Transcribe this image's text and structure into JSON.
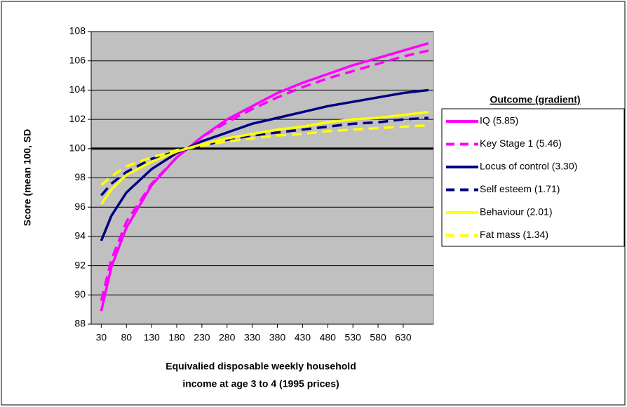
{
  "chart_data": {
    "type": "line",
    "y_label": "Score (mean 100, SD",
    "x_label": [
      "Equivalied disposable weekly household",
      "income at age 3 to 4 (1995 prices)"
    ],
    "legend_title": "Outcome (gradient)",
    "x": [
      30,
      50,
      80,
      130,
      180,
      230,
      280,
      330,
      380,
      430,
      480,
      530,
      580,
      630,
      680
    ],
    "xlim": [
      10,
      690
    ],
    "xticks": [
      30,
      80,
      130,
      180,
      230,
      280,
      330,
      380,
      430,
      480,
      530,
      580,
      630
    ],
    "ylim": [
      88,
      108
    ],
    "yticks": [
      88,
      90,
      92,
      94,
      96,
      98,
      100,
      102,
      104,
      106,
      108
    ],
    "reference_line": 100,
    "grid": true,
    "legend": "right",
    "series": [
      {
        "name": "IQ (5.85)",
        "color": "#ff00ff",
        "dashed": false,
        "values": [
          88.9,
          91.9,
          94.6,
          97.5,
          99.4,
          100.8,
          102.0,
          102.9,
          103.8,
          104.5,
          105.1,
          105.7,
          106.2,
          106.7,
          107.2
        ]
      },
      {
        "name": "Key Stage 1 (5.46)",
        "color": "#ff00ff",
        "dashed": true,
        "values": [
          89.6,
          92.4,
          95.0,
          97.6,
          99.4,
          100.8,
          101.8,
          102.7,
          103.5,
          104.2,
          104.8,
          105.3,
          105.8,
          106.3,
          106.7
        ]
      },
      {
        "name": "Locus of control (3.30)",
        "color": "#000080",
        "dashed": false,
        "values": [
          93.7,
          95.4,
          97.0,
          98.6,
          99.7,
          100.5,
          101.1,
          101.7,
          102.1,
          102.5,
          102.9,
          103.2,
          103.5,
          103.8,
          104.0
        ]
      },
      {
        "name": "Self esteem (1.71)",
        "color": "#000080",
        "dashed": true,
        "values": [
          96.8,
          97.6,
          98.4,
          99.3,
          99.8,
          100.2,
          100.6,
          100.9,
          101.1,
          101.3,
          101.5,
          101.7,
          101.8,
          102.0,
          102.1
        ]
      },
      {
        "name": "Behaviour (2.01)",
        "color": "#ffff00",
        "dashed": false,
        "values": [
          96.2,
          97.2,
          98.2,
          99.1,
          99.8,
          100.3,
          100.7,
          101.0,
          101.3,
          101.5,
          101.8,
          102.0,
          102.1,
          102.3,
          102.5
        ]
      },
      {
        "name": "Fat mass (1.34)",
        "color": "#ffff00",
        "dashed": true,
        "values": [
          97.5,
          98.1,
          98.8,
          99.4,
          99.9,
          100.2,
          100.5,
          100.7,
          100.9,
          101.0,
          101.2,
          101.3,
          101.4,
          101.5,
          101.6
        ]
      }
    ]
  }
}
